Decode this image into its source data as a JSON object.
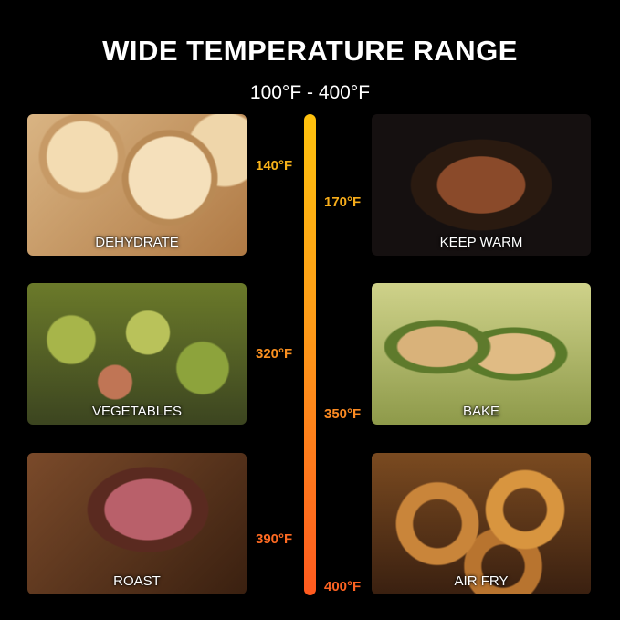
{
  "title": "WIDE TEMPERATURE RANGE",
  "range": "100°F - 400°F",
  "gradient": {
    "top": "#ffc20e",
    "bottom": "#ff5a1f"
  },
  "modes": [
    {
      "label": "DEHYDRATE",
      "temp": "140°F",
      "color": "#f7b21a"
    },
    {
      "label": "KEEP WARM",
      "temp": "170°F",
      "color": "#f7ad1a"
    },
    {
      "label": "VEGETABLES",
      "temp": "320°F",
      "color": "#fa9020"
    },
    {
      "label": "BAKE",
      "temp": "350°F",
      "color": "#fb8a22"
    },
    {
      "label": "ROAST",
      "temp": "390°F",
      "color": "#fd6a22"
    },
    {
      "label": "AIR FRY",
      "temp": "400°F",
      "color": "#fe6322"
    }
  ]
}
